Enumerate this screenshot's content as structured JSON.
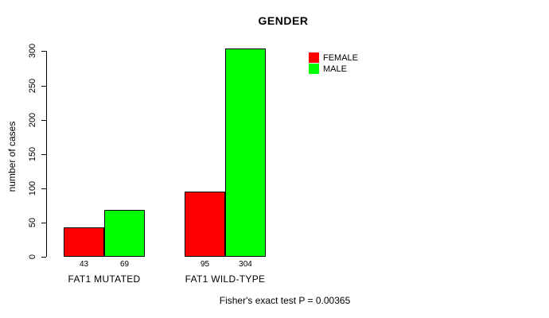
{
  "title": "GENDER",
  "y_axis": {
    "label": "number of cases",
    "ticks": [
      0,
      50,
      100,
      150,
      200,
      250,
      300
    ]
  },
  "legend": {
    "position": "top-right",
    "entries": [
      {
        "label": "FEMALE",
        "color": "#FF0000"
      },
      {
        "label": "MALE",
        "color": "#00FF00"
      }
    ]
  },
  "caption": "Fisher's exact test P = 0.00365",
  "chart_data": {
    "type": "bar",
    "title": "GENDER",
    "categories": [
      "FAT1 MUTATED",
      "FAT1 WILD-TYPE"
    ],
    "series": [
      {
        "name": "FEMALE",
        "color": "#FF0000",
        "values": [
          43,
          95
        ]
      },
      {
        "name": "MALE",
        "color": "#00FF00",
        "values": [
          69,
          304
        ]
      }
    ],
    "value_labels": [
      [
        43,
        69
      ],
      [
        95,
        304
      ]
    ],
    "xlabel": "",
    "ylabel": "number of cases",
    "ylim": [
      0,
      300
    ],
    "yticks": [
      0,
      50,
      100,
      150,
      200,
      250,
      300
    ],
    "grid": false,
    "legend_position": "top-right",
    "bar_borders": "#000000",
    "annotation": "Fisher's exact test P = 0.00365"
  }
}
